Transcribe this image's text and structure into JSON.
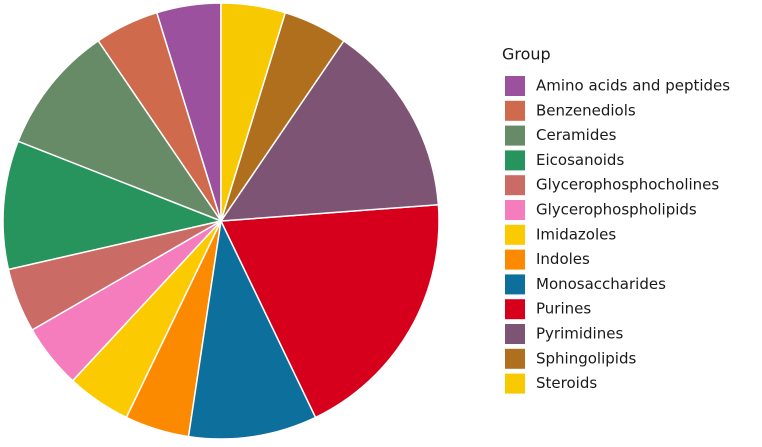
{
  "chart_data": {
    "type": "pie",
    "legend_title": "Group",
    "categories": [
      "Amino acids and peptides",
      "Benzenediols",
      "Ceramides",
      "Eicosanoids",
      "Glycerophosphocholines",
      "Glycerophospholipids",
      "Imidazoles",
      "Indoles",
      "Monosaccharides",
      "Purines",
      "Pyrimidines",
      "Sphingolipids",
      "Steroids"
    ],
    "values": [
      5,
      5,
      10,
      10,
      5,
      5,
      5,
      5,
      10,
      20,
      15,
      5,
      5
    ],
    "colors": [
      "#9b519e",
      "#cf6a4d",
      "#678a67",
      "#26945c",
      "#cb6b65",
      "#f57dbd",
      "#fbca00",
      "#fc8a00",
      "#0c6f9c",
      "#d6001c",
      "#7e5474",
      "#b06f1d",
      "#f6c900"
    ],
    "direction": "counterclockwise",
    "start_angle": 0
  }
}
